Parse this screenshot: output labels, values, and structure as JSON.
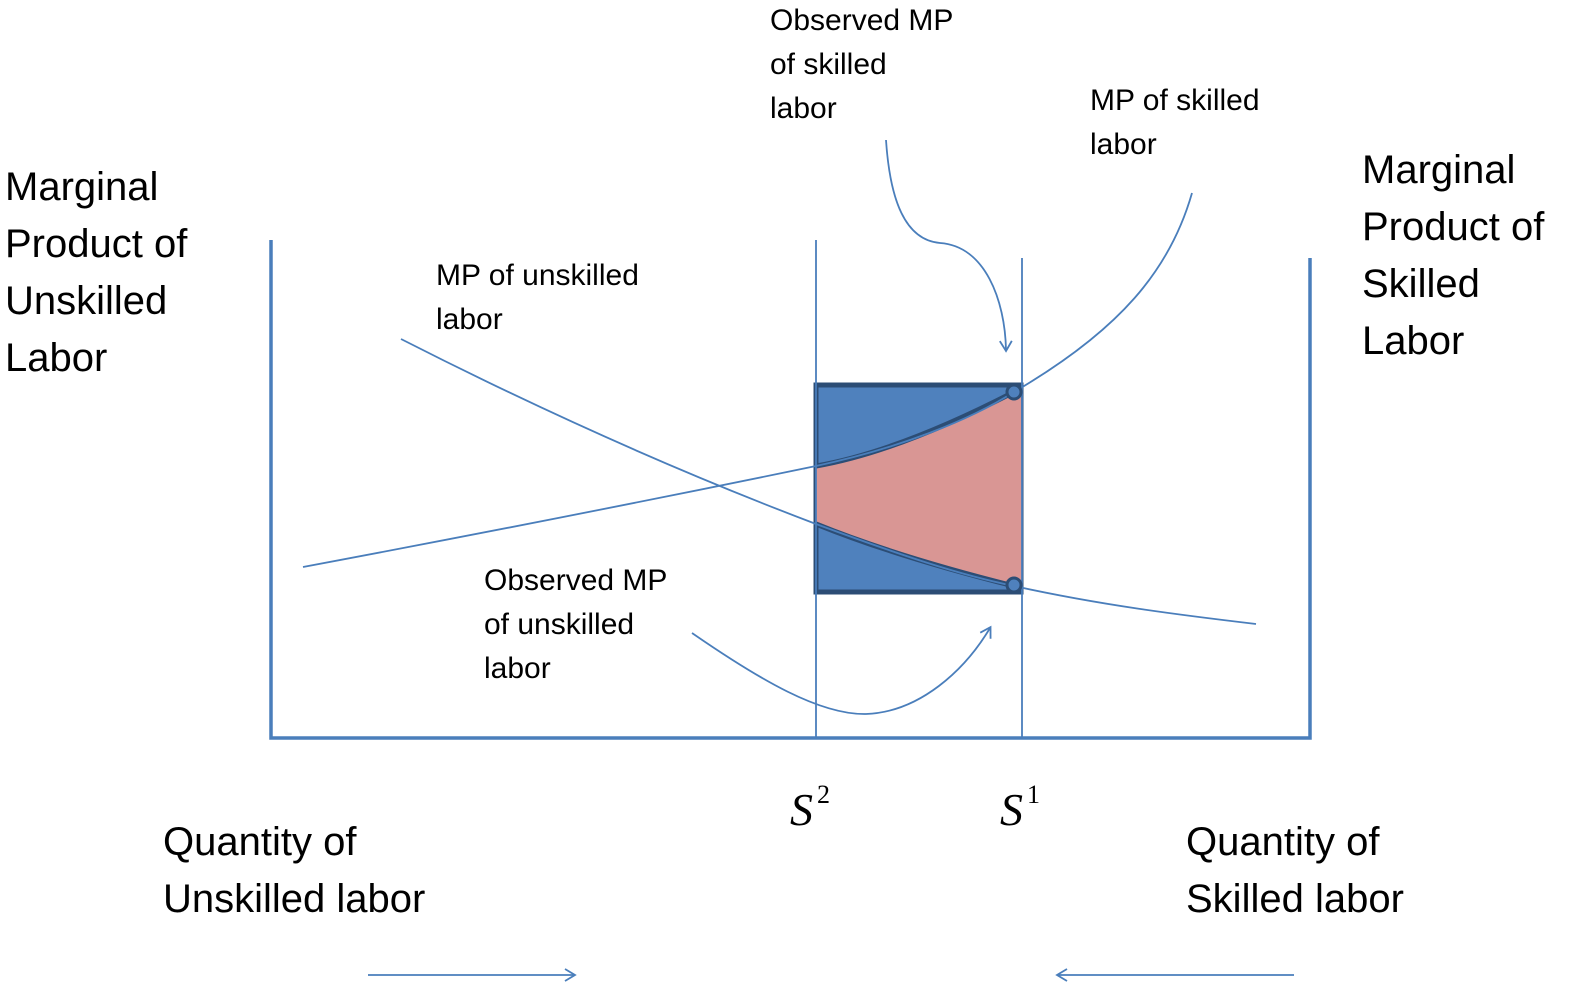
{
  "labels": {
    "left_axis": [
      "Marginal",
      "Product of",
      "Unskilled",
      "Labor"
    ],
    "right_axis": [
      "Marginal",
      "Product of",
      "Skilled",
      "Labor"
    ],
    "observed_skilled": [
      "Observed MP",
      "of skilled",
      "labor"
    ],
    "mp_skilled": [
      "MP of skilled",
      "labor"
    ],
    "mp_unskilled": [
      "MP of unskilled",
      "labor"
    ],
    "observed_unskilled": [
      "Observed MP",
      "of unskilled",
      "labor"
    ],
    "quantity_unskilled": [
      "Quantity of",
      "Unskilled labor"
    ],
    "quantity_skilled": [
      "Quantity of",
      "Skilled labor"
    ],
    "s2": {
      "base": "S",
      "sup": "2"
    },
    "s1": {
      "base": "S",
      "sup": "1"
    }
  }
}
